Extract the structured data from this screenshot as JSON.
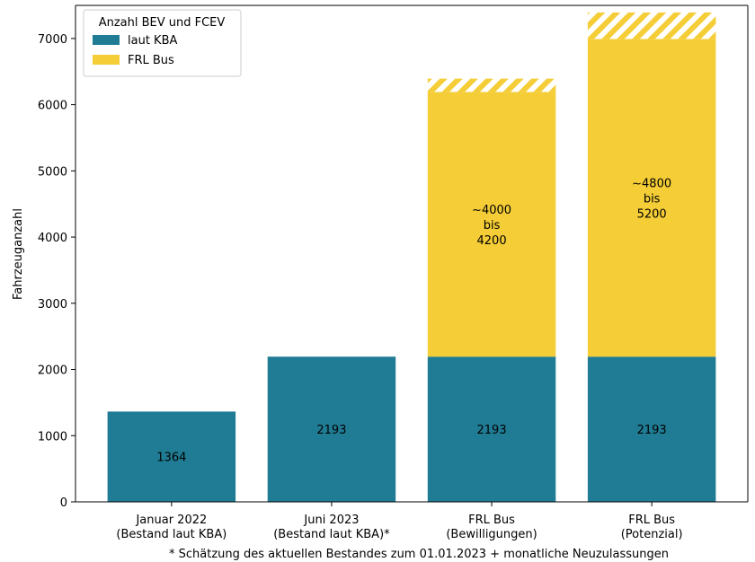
{
  "chart_data": {
    "type": "bar",
    "stacked": true,
    "ylabel": "Fahrzeuganzahl",
    "ylim": [
      0,
      7500
    ],
    "yticks": [
      0,
      1000,
      2000,
      3000,
      4000,
      5000,
      6000,
      7000
    ],
    "categories": [
      [
        "Januar 2022",
        "(Bestand laut KBA)"
      ],
      [
        "Juni 2023",
        "(Bestand laut KBA)*"
      ],
      [
        "FRL Bus",
        "(Bewilligungen)"
      ],
      [
        "FRL Bus",
        "(Potenzial)"
      ]
    ],
    "series": [
      {
        "name": "laut KBA",
        "color": "#1f7c94",
        "values": [
          1364,
          2193,
          2193,
          2193
        ]
      },
      {
        "name": "FRL Bus",
        "color": "#f5cd36",
        "values": [
          0,
          0,
          4000,
          4800
        ]
      },
      {
        "name": "",
        "color": "#f5cd36",
        "pattern": "hatched",
        "values": [
          0,
          0,
          200,
          400
        ]
      }
    ],
    "bar_labels": [
      [
        [
          "1364"
        ],
        [
          "2193"
        ],
        [
          "2193"
        ],
        [
          "2193"
        ]
      ],
      [
        [],
        [],
        [
          "~4000",
          "bis",
          "4200"
        ],
        [
          "~4800",
          "bis",
          "5200"
        ]
      ]
    ],
    "legend": {
      "title": "Anzahl BEV und FCEV",
      "placement": "top-left",
      "entries": [
        "laut KBA",
        "FRL Bus"
      ]
    },
    "footnote": "* Schätzung des aktuellen Bestandes zum 01.01.2023 + monatliche Neuzulassungen",
    "grid": false
  }
}
